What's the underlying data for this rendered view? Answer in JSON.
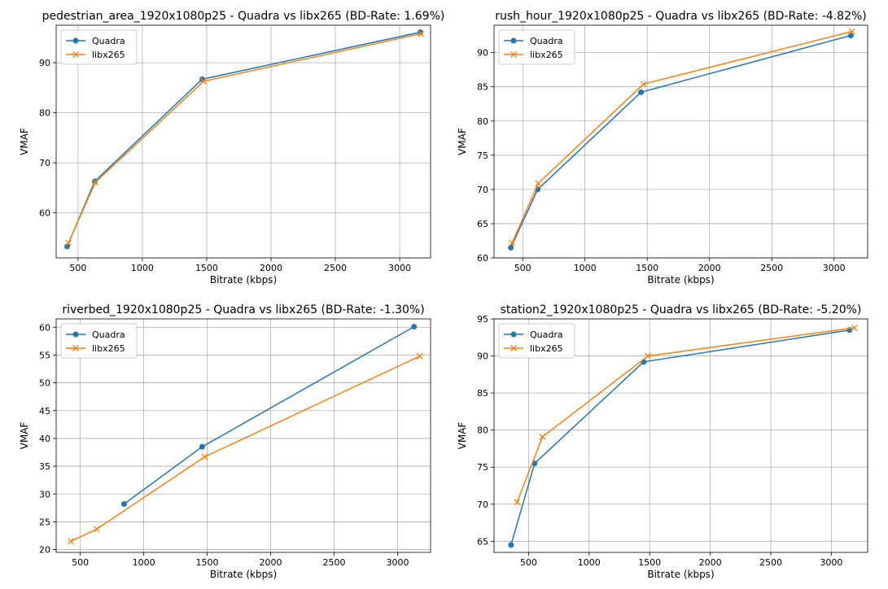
{
  "chart_data": [
    {
      "type": "line",
      "title": "pedestrian_area_1920x1080p25 - Quadra vs libx265 (BD-Rate: 1.69%)",
      "xlabel": "Bitrate (kbps)",
      "ylabel": "VMAF",
      "xlim": [
        330,
        3240
      ],
      "ylim": [
        51,
        97.5
      ],
      "xticks": [
        500,
        1000,
        1500,
        2000,
        2500,
        3000
      ],
      "yticks": [
        60,
        70,
        80,
        90
      ],
      "grid": true,
      "legend_position": "top-left",
      "series": [
        {
          "name": "Quadra",
          "marker": "circle",
          "color": "#1f77b4",
          "x": [
            415,
            630,
            1465,
            3160
          ],
          "y": [
            53.3,
            66.3,
            86.7,
            96.1
          ]
        },
        {
          "name": "libx265",
          "marker": "x",
          "color": "#ff7f0e",
          "x": [
            425,
            635,
            1475,
            3165
          ],
          "y": [
            54.0,
            66.1,
            86.3,
            95.8
          ]
        }
      ]
    },
    {
      "type": "line",
      "title": "rush_hour_1920x1080p25 - Quadra vs libx265 (BD-Rate: -4.82%)",
      "xlabel": "Bitrate (kbps)",
      "ylabel": "VMAF",
      "xlim": [
        270,
        3270
      ],
      "ylim": [
        60,
        94
      ],
      "xticks": [
        500,
        1000,
        1500,
        2000,
        2500,
        3000
      ],
      "yticks": [
        60,
        65,
        70,
        75,
        80,
        85,
        90
      ],
      "grid": true,
      "legend_position": "top-left",
      "series": [
        {
          "name": "Quadra",
          "marker": "circle",
          "color": "#1f77b4",
          "x": [
            405,
            620,
            1450,
            3135
          ],
          "y": [
            61.5,
            70.0,
            84.2,
            92.5
          ]
        },
        {
          "name": "libx265",
          "marker": "x",
          "color": "#ff7f0e",
          "x": [
            415,
            625,
            1470,
            3145
          ],
          "y": [
            62.2,
            70.9,
            85.4,
            93.1
          ]
        }
      ]
    },
    {
      "type": "line",
      "title": "riverbed_1920x1080p25 - Quadra vs libx265 (BD-Rate: -1.30%)",
      "xlabel": "Bitrate (kbps)",
      "ylabel": "VMAF",
      "xlim": [
        310,
        3260
      ],
      "ylim": [
        19.5,
        61.5
      ],
      "xticks": [
        500,
        1000,
        1500,
        2000,
        2500,
        3000
      ],
      "yticks": [
        20,
        25,
        30,
        35,
        40,
        45,
        50,
        55,
        60
      ],
      "grid": true,
      "legend_position": "top-left",
      "series": [
        {
          "name": "Quadra",
          "marker": "circle",
          "color": "#1f77b4",
          "x": [
            845,
            1460,
            3130
          ],
          "y": [
            28.2,
            38.5,
            60.1
          ]
        },
        {
          "name": "libx265",
          "marker": "x",
          "color": "#ff7f0e",
          "x": [
            425,
            630,
            1480,
            3175
          ],
          "y": [
            21.5,
            23.7,
            36.7,
            54.8
          ]
        }
      ]
    },
    {
      "type": "line",
      "title": "station2_1920x1080p25 - Quadra vs libx265 (BD-Rate: -5.20%)",
      "xlabel": "Bitrate (kbps)",
      "ylabel": "VMAF",
      "xlim": [
        215,
        3300
      ],
      "ylim": [
        63.5,
        95
      ],
      "xticks": [
        500,
        1000,
        1500,
        2000,
        2500,
        3000
      ],
      "yticks": [
        65,
        70,
        75,
        80,
        85,
        90,
        95
      ],
      "grid": true,
      "legend_position": "top-left",
      "series": [
        {
          "name": "Quadra",
          "marker": "circle",
          "color": "#1f77b4",
          "x": [
            355,
            550,
            1450,
            3150
          ],
          "y": [
            64.5,
            75.5,
            89.2,
            93.5
          ]
        },
        {
          "name": "libx265",
          "marker": "x",
          "color": "#ff7f0e",
          "x": [
            405,
            615,
            1485,
            3190
          ],
          "y": [
            70.3,
            79.1,
            90.0,
            93.8
          ]
        }
      ]
    }
  ]
}
